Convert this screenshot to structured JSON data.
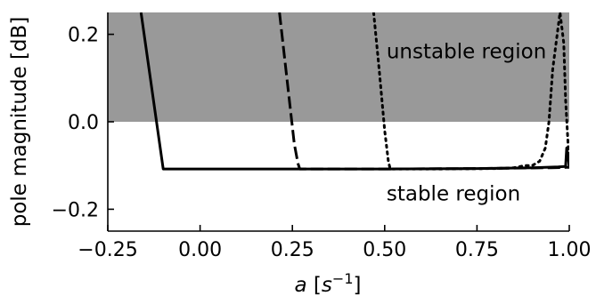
{
  "chart_data": {
    "type": "line",
    "title": "",
    "xlabel": "a [s⁻¹]",
    "xlabel_parts": {
      "var": "a",
      "open": " [s",
      "sup": "−1",
      "close": "]"
    },
    "ylabel": "pole magnitude [dB]",
    "xlim": [
      -0.25,
      1.0
    ],
    "ylim": [
      -0.25,
      0.25
    ],
    "x_ticks": [
      -0.25,
      0.0,
      0.25,
      0.5,
      0.75,
      1.0
    ],
    "x_tick_labels": [
      "−0.25",
      "0.00",
      "0.25",
      "0.50",
      "0.75",
      "1.00"
    ],
    "y_ticks": [
      -0.2,
      0.0,
      0.2
    ],
    "y_tick_labels": [
      "−0.2",
      "0.0",
      "0.2"
    ],
    "grid": false,
    "legend": "none",
    "shaded_region": {
      "y_from": 0.0,
      "y_to": 0.25,
      "color": "#999999"
    },
    "annotations": [
      {
        "text": "unstable region",
        "x": 0.505,
        "y": 0.145
      },
      {
        "text": "stable region",
        "x": 0.505,
        "y": -0.18
      }
    ],
    "series": [
      {
        "style": "solid",
        "color": "#000000",
        "x": [
          -0.16,
          -0.1,
          0.0,
          0.25,
          0.5,
          0.75,
          0.9,
          0.97,
          0.99,
          0.993,
          0.997,
          1.0
        ],
        "y": [
          0.25,
          -0.108,
          -0.108,
          -0.108,
          -0.108,
          -0.107,
          -0.105,
          -0.103,
          -0.102,
          -0.06,
          -0.08,
          -0.103
        ]
      },
      {
        "style": "dashed",
        "color": "#000000",
        "x": [
          0.215,
          0.235,
          0.255,
          0.265,
          0.27,
          0.5,
          0.75,
          0.95,
          1.0
        ],
        "y": [
          0.25,
          0.1,
          -0.05,
          -0.095,
          -0.108,
          -0.108,
          -0.107,
          -0.105,
          -0.104
        ]
      },
      {
        "style": "dotted",
        "color": "#000000",
        "x": [
          0.47,
          0.485,
          0.5,
          0.51,
          0.515,
          0.65,
          0.8,
          0.85,
          0.88,
          0.9,
          0.92,
          0.935,
          0.945,
          0.955,
          0.975,
          0.985,
          0.99,
          1.0
        ],
        "y": [
          0.25,
          0.12,
          -0.02,
          -0.09,
          -0.108,
          -0.108,
          -0.107,
          -0.105,
          -0.1,
          -0.1,
          -0.09,
          -0.06,
          0.0,
          0.12,
          0.25,
          0.18,
          0.05,
          -0.1
        ]
      }
    ]
  }
}
